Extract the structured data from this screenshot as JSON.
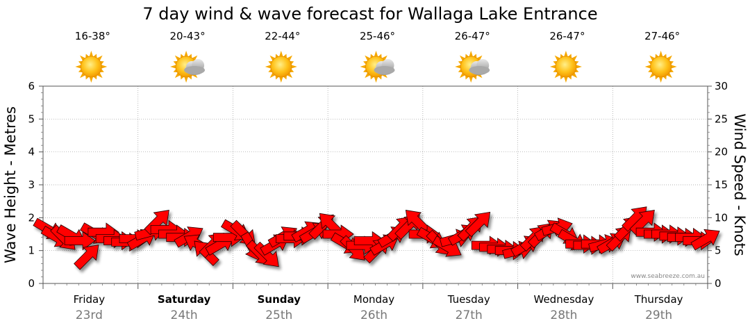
{
  "chart_data": {
    "type": "line",
    "title": "7 day wind & wave forecast for Wallaga Lake Entrance",
    "ylabel": "Wave Height - Metres",
    "y2label": "Wind Speed - Knots",
    "ylim": [
      0,
      6
    ],
    "y2lim": [
      0,
      30
    ],
    "yticks": [
      "0",
      "1",
      "2",
      "3",
      "4",
      "5",
      "6"
    ],
    "y2ticks": [
      "0",
      "5",
      "10",
      "15",
      "20",
      "25",
      "30"
    ],
    "grid": true,
    "credit": "www.seabreeze.com.au",
    "days": [
      {
        "name": "Friday",
        "date": "23rd",
        "bold": false,
        "temp": "16-38°",
        "icon": "sun-icon"
      },
      {
        "name": "Saturday",
        "date": "24th",
        "bold": true,
        "temp": "20-43°",
        "icon": "sun-cloud-icon"
      },
      {
        "name": "Sunday",
        "date": "25th",
        "bold": true,
        "temp": "22-44°",
        "icon": "sun-icon"
      },
      {
        "name": "Monday",
        "date": "26th",
        "bold": false,
        "temp": "25-46°",
        "icon": "sun-cloud-icon"
      },
      {
        "name": "Tuesday",
        "date": "27th",
        "bold": false,
        "temp": "26-47°",
        "icon": "sun-cloud-icon"
      },
      {
        "name": "Wednesday",
        "date": "28th",
        "bold": false,
        "temp": "26-47°",
        "icon": "sun-icon"
      },
      {
        "name": "Thursday",
        "date": "29th",
        "bold": false,
        "temp": "27-46°",
        "icon": "sun-icon"
      }
    ],
    "wind_series": {
      "name": "Wind Speed (knots)",
      "step_hours": 3,
      "values": [
        8.2,
        7.0,
        6.8,
        7.2,
        6.5,
        4.2,
        7.5,
        7.8,
        6.8,
        6.5,
        6.3,
        6.8,
        6.8,
        7.8,
        9.5,
        8.2,
        7.5,
        7.0,
        7.2,
        6.0,
        4.8,
        6.0,
        6.0,
        7.0,
        8.0,
        7.5,
        5.5,
        4.5,
        4.2,
        6.0,
        7.2,
        6.8,
        7.2,
        8.0,
        7.8,
        8.8,
        9.0,
        7.5,
        6.0,
        5.2,
        5.8,
        6.5,
        5.2,
        6.0,
        7.2,
        8.5,
        8.8,
        9.5,
        7.5,
        6.8,
        6.0,
        5.5,
        6.8,
        7.5,
        8.5,
        9.2,
        5.8,
        5.5,
        5.2,
        5.0,
        5.0,
        5.8,
        7.0,
        7.5,
        8.2,
        8.5,
        7.5,
        6.5,
        6.0,
        5.8,
        6.0,
        6.0,
        6.2,
        7.0,
        8.5,
        10.0,
        9.5,
        7.8,
        7.5,
        7.5,
        7.2,
        7.0,
        7.0,
        6.5,
        6.8
      ],
      "directions_deg": [
        120,
        120,
        135,
        120,
        90,
        45,
        120,
        90,
        90,
        90,
        90,
        90,
        60,
        75,
        45,
        90,
        90,
        90,
        60,
        300,
        315,
        45,
        60,
        90,
        120,
        135,
        150,
        135,
        135,
        60,
        60,
        90,
        90,
        60,
        60,
        45,
        315,
        90,
        120,
        135,
        90,
        90,
        45,
        60,
        60,
        45,
        45,
        315,
        90,
        120,
        135,
        120,
        75,
        60,
        45,
        45,
        90,
        90,
        90,
        90,
        75,
        60,
        45,
        45,
        60,
        75,
        120,
        120,
        90,
        90,
        90,
        75,
        60,
        45,
        45,
        45,
        45,
        90,
        90,
        90,
        90,
        90,
        90,
        90,
        60
      ]
    },
    "wave_series": {
      "name": "Wave Height (m)",
      "values": []
    }
  }
}
